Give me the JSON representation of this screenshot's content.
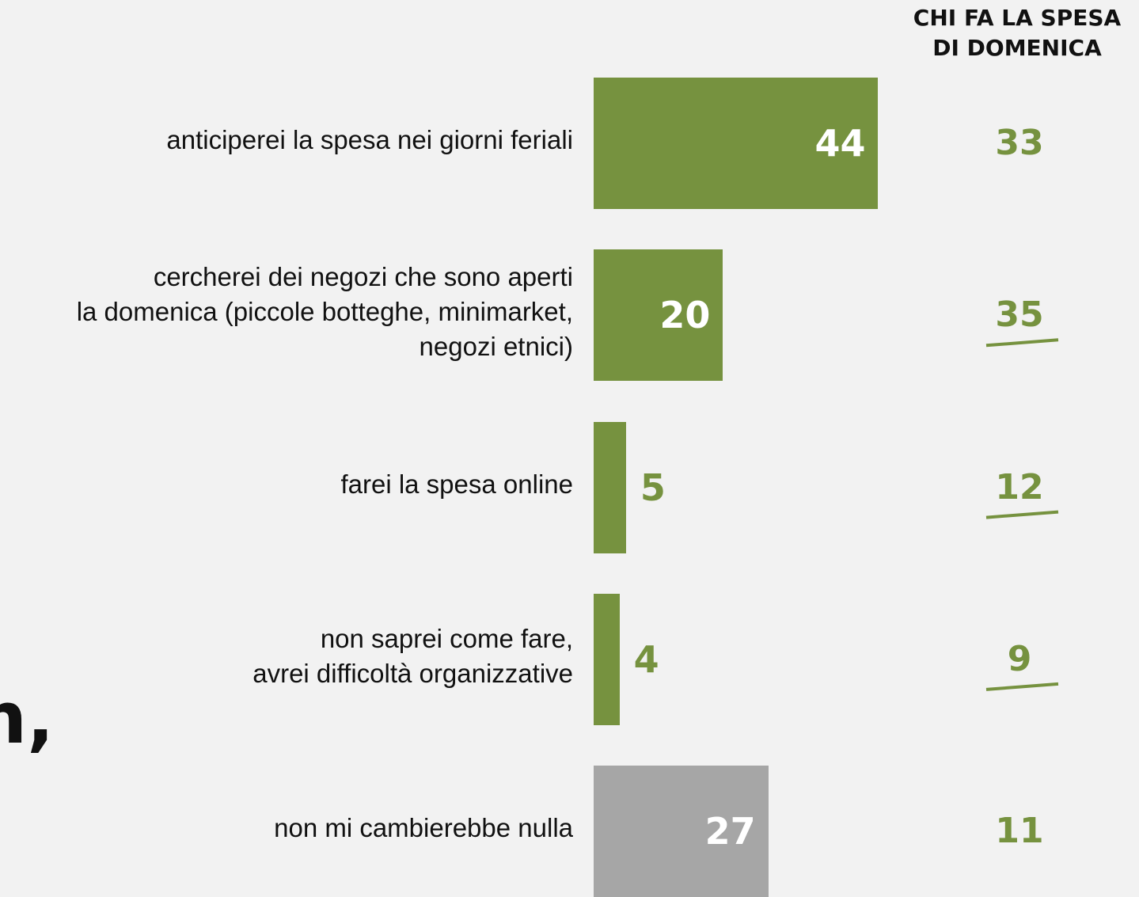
{
  "chart_data": {
    "type": "bar",
    "orientation": "horizontal",
    "categories": [
      "anticiperei la spesa nei giorni feriali",
      "cercherei dei negozi che sono aperti\nla domenica (piccole botteghe, minimarket,\nnegozi etnici)",
      "farei la spesa online",
      "non saprei come fare,\navrei difficoltà organizzative",
      "non mi cambierebbe nulla"
    ],
    "values": [
      44,
      20,
      5,
      4,
      27
    ],
    "colors": [
      "#76923f",
      "#76923f",
      "#76923f",
      "#76923f",
      "#a6a6a6"
    ],
    "side_column": {
      "title": "CHI FA LA SPESA\nDI DOMENICA",
      "values": [
        33,
        35,
        12,
        9,
        11
      ],
      "color": "#76923f",
      "underlined": [
        false,
        true,
        true,
        true,
        false
      ]
    },
    "annotations": [
      "n,"
    ]
  }
}
